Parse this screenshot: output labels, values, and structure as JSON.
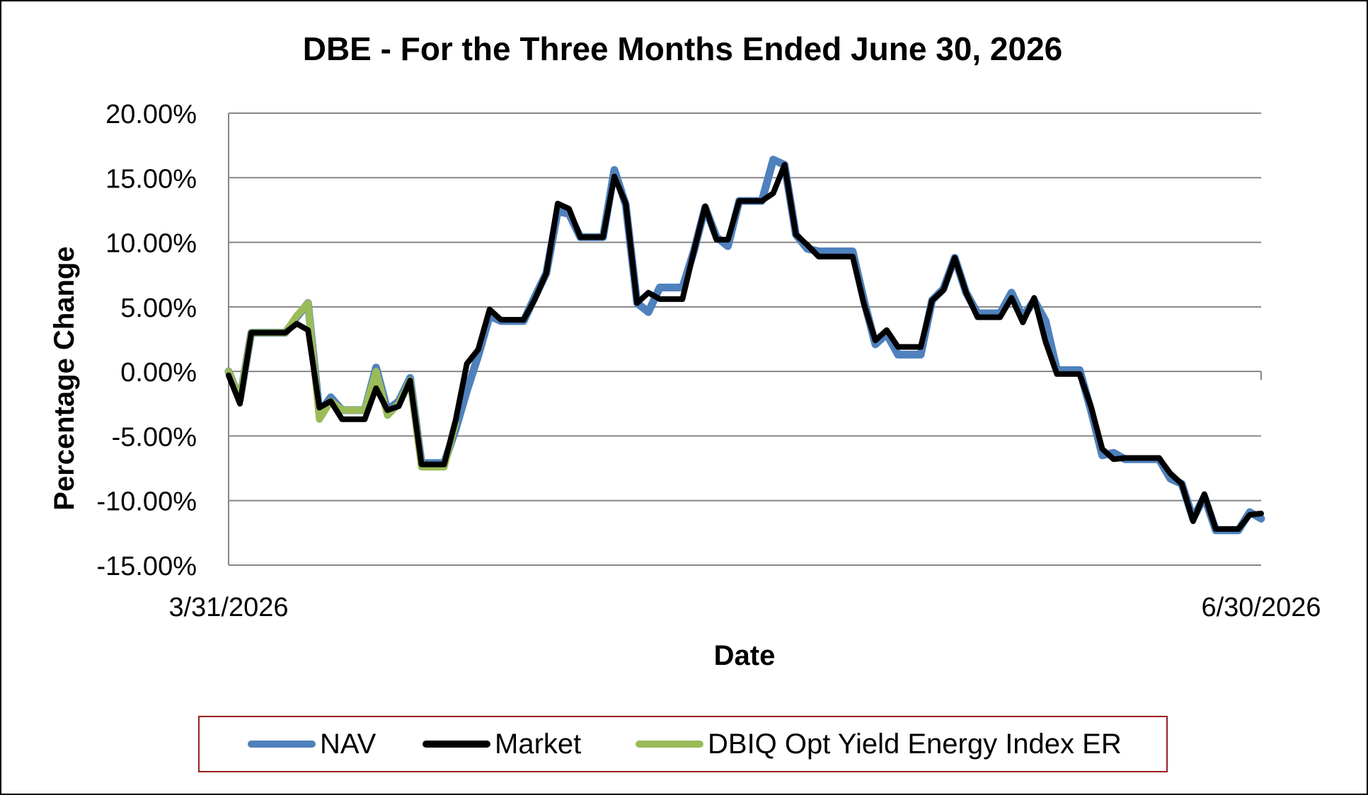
{
  "chart_data": {
    "type": "line",
    "title": "DBE - For the Three Months Ended June 30, 2026",
    "xlabel": "Date",
    "ylabel": "Percentage Change",
    "x_tick_labels": [
      "3/31/2026",
      "6/30/2026"
    ],
    "y_ticks": [
      "20.00%",
      "15.00%",
      "10.00%",
      "5.00%",
      "0.00%",
      "-5.00%",
      "-10.00%",
      "-15.00%"
    ],
    "ylim": [
      -15,
      20
    ],
    "grid": "horizontal",
    "legend_position": "bottom",
    "series": [
      {
        "name": "NAV",
        "color": "#4f81bd",
        "points": [
          [
            0,
            0
          ],
          [
            1,
            -2.2
          ],
          [
            2,
            3
          ],
          [
            3,
            3
          ],
          [
            4,
            3
          ],
          [
            5,
            3
          ],
          [
            6,
            4.2
          ],
          [
            7,
            5.3
          ],
          [
            8,
            -3.2
          ],
          [
            9,
            -2
          ],
          [
            10,
            -3
          ],
          [
            11,
            -3
          ],
          [
            12,
            -3
          ],
          [
            13,
            0.3
          ],
          [
            14,
            -3
          ],
          [
            15,
            -2.3
          ],
          [
            16,
            -0.5
          ],
          [
            17,
            -7.1
          ],
          [
            18,
            -7.1
          ],
          [
            19,
            -7.1
          ],
          [
            20,
            -4.5
          ],
          [
            21,
            -1.5
          ],
          [
            22,
            1.2
          ],
          [
            23,
            4.3
          ],
          [
            24,
            3.9
          ],
          [
            25,
            3.9
          ],
          [
            26,
            3.9
          ],
          [
            27,
            5.8
          ],
          [
            28,
            7.6
          ],
          [
            29,
            12.4
          ],
          [
            30,
            12.2
          ],
          [
            31,
            10.4
          ],
          [
            32,
            10.4
          ],
          [
            33,
            10.4
          ],
          [
            34,
            15.6
          ],
          [
            35,
            12.9
          ],
          [
            36,
            5.3
          ],
          [
            37,
            4.6
          ],
          [
            38,
            6.5
          ],
          [
            39,
            6.5
          ],
          [
            40,
            6.5
          ],
          [
            41,
            9.3
          ],
          [
            42,
            12.7
          ],
          [
            43,
            10.4
          ],
          [
            44,
            9.7
          ],
          [
            45,
            13.2
          ],
          [
            46,
            13.2
          ],
          [
            47,
            13.2
          ],
          [
            48,
            16.4
          ],
          [
            49,
            16
          ],
          [
            50,
            10.6
          ],
          [
            51,
            9.5
          ],
          [
            52,
            9.3
          ],
          [
            53,
            9.3
          ],
          [
            54,
            9.3
          ],
          [
            55,
            9.3
          ],
          [
            56,
            5.5
          ],
          [
            57,
            2.1
          ],
          [
            58,
            2.9
          ],
          [
            59,
            1.3
          ],
          [
            60,
            1.3
          ],
          [
            61,
            1.3
          ],
          [
            62,
            5.5
          ],
          [
            63,
            6.4
          ],
          [
            64,
            8.8
          ],
          [
            65,
            6.1
          ],
          [
            66,
            4.5
          ],
          [
            67,
            4.5
          ],
          [
            68,
            4.5
          ],
          [
            69,
            6.1
          ],
          [
            70,
            4.2
          ],
          [
            71,
            5.5
          ],
          [
            72,
            3.9
          ],
          [
            73,
            0.1
          ],
          [
            74,
            0.1
          ],
          [
            75,
            0.1
          ],
          [
            76,
            -3
          ],
          [
            77,
            -6.5
          ],
          [
            78,
            -6.3
          ],
          [
            79,
            -6.8
          ],
          [
            80,
            -6.8
          ],
          [
            81,
            -6.8
          ],
          [
            82,
            -6.8
          ],
          [
            83,
            -8.3
          ],
          [
            84,
            -8.7
          ],
          [
            85,
            -11.4
          ],
          [
            86,
            -9.7
          ],
          [
            87,
            -12.3
          ],
          [
            88,
            -12.3
          ],
          [
            89,
            -12.3
          ],
          [
            90,
            -10.9
          ],
          [
            91,
            -11.4
          ]
        ]
      },
      {
        "name": "Market",
        "color": "#000000",
        "points": [
          [
            0,
            -0.3
          ],
          [
            1,
            -2.5
          ],
          [
            2,
            3
          ],
          [
            3,
            3
          ],
          [
            4,
            3
          ],
          [
            5,
            3
          ],
          [
            6,
            3.7
          ],
          [
            7,
            3.2
          ],
          [
            8,
            -2.8
          ],
          [
            9,
            -2.3
          ],
          [
            10,
            -3.7
          ],
          [
            11,
            -3.7
          ],
          [
            12,
            -3.7
          ],
          [
            13,
            -1.3
          ],
          [
            14,
            -3
          ],
          [
            15,
            -2.7
          ],
          [
            16,
            -0.7
          ],
          [
            17,
            -7.2
          ],
          [
            18,
            -7.2
          ],
          [
            19,
            -7.2
          ],
          [
            20,
            -3.8
          ],
          [
            21,
            0.6
          ],
          [
            22,
            1.7
          ],
          [
            23,
            4.8
          ],
          [
            24,
            4
          ],
          [
            25,
            4
          ],
          [
            26,
            4
          ],
          [
            27,
            5.6
          ],
          [
            28,
            7.6
          ],
          [
            29,
            13
          ],
          [
            30,
            12.6
          ],
          [
            31,
            10.4
          ],
          [
            32,
            10.4
          ],
          [
            33,
            10.4
          ],
          [
            34,
            15.1
          ],
          [
            35,
            13
          ],
          [
            36,
            5.3
          ],
          [
            37,
            6.1
          ],
          [
            38,
            5.6
          ],
          [
            39,
            5.6
          ],
          [
            40,
            5.6
          ],
          [
            41,
            9.3
          ],
          [
            42,
            12.8
          ],
          [
            43,
            10.2
          ],
          [
            44,
            10.2
          ],
          [
            45,
            13.2
          ],
          [
            46,
            13.2
          ],
          [
            47,
            13.2
          ],
          [
            48,
            13.8
          ],
          [
            49,
            16
          ],
          [
            50,
            10.6
          ],
          [
            51,
            9.8
          ],
          [
            52,
            8.9
          ],
          [
            53,
            8.9
          ],
          [
            54,
            8.9
          ],
          [
            55,
            8.9
          ],
          [
            56,
            5.2
          ],
          [
            57,
            2.4
          ],
          [
            58,
            3.2
          ],
          [
            59,
            1.9
          ],
          [
            60,
            1.9
          ],
          [
            61,
            1.9
          ],
          [
            62,
            5.5
          ],
          [
            63,
            6.3
          ],
          [
            64,
            8.8
          ],
          [
            65,
            6.1
          ],
          [
            66,
            4.2
          ],
          [
            67,
            4.2
          ],
          [
            68,
            4.2
          ],
          [
            69,
            5.7
          ],
          [
            70,
            3.8
          ],
          [
            71,
            5.7
          ],
          [
            72,
            2.3
          ],
          [
            73,
            -0.2
          ],
          [
            74,
            -0.2
          ],
          [
            75,
            -0.2
          ],
          [
            76,
            -2.7
          ],
          [
            77,
            -6
          ],
          [
            78,
            -6.8
          ],
          [
            79,
            -6.7
          ],
          [
            80,
            -6.7
          ],
          [
            81,
            -6.7
          ],
          [
            82,
            -6.7
          ],
          [
            83,
            -7.9
          ],
          [
            84,
            -8.7
          ],
          [
            85,
            -11.6
          ],
          [
            86,
            -9.5
          ],
          [
            87,
            -12.2
          ],
          [
            88,
            -12.2
          ],
          [
            89,
            -12.2
          ],
          [
            90,
            -11.1
          ],
          [
            91,
            -11
          ]
        ]
      },
      {
        "name": "DBIQ Opt Yield Energy Index ER",
        "color": "#9bbb59",
        "points": [
          [
            0,
            0
          ],
          [
            1,
            -2.2
          ],
          [
            2,
            3
          ],
          [
            3,
            3
          ],
          [
            4,
            3
          ],
          [
            5,
            3
          ],
          [
            6,
            4.3
          ],
          [
            7,
            5.3
          ],
          [
            8,
            -3.7
          ],
          [
            9,
            -2.3
          ],
          [
            10,
            -3
          ],
          [
            11,
            -3
          ],
          [
            12,
            -3
          ],
          [
            13,
            0
          ],
          [
            14,
            -3.4
          ],
          [
            15,
            -2.5
          ],
          [
            16,
            -0.7
          ],
          [
            17,
            -7.4
          ],
          [
            18,
            -7.4
          ],
          [
            19,
            -7.4
          ],
          [
            20,
            -4
          ]
        ]
      }
    ]
  }
}
